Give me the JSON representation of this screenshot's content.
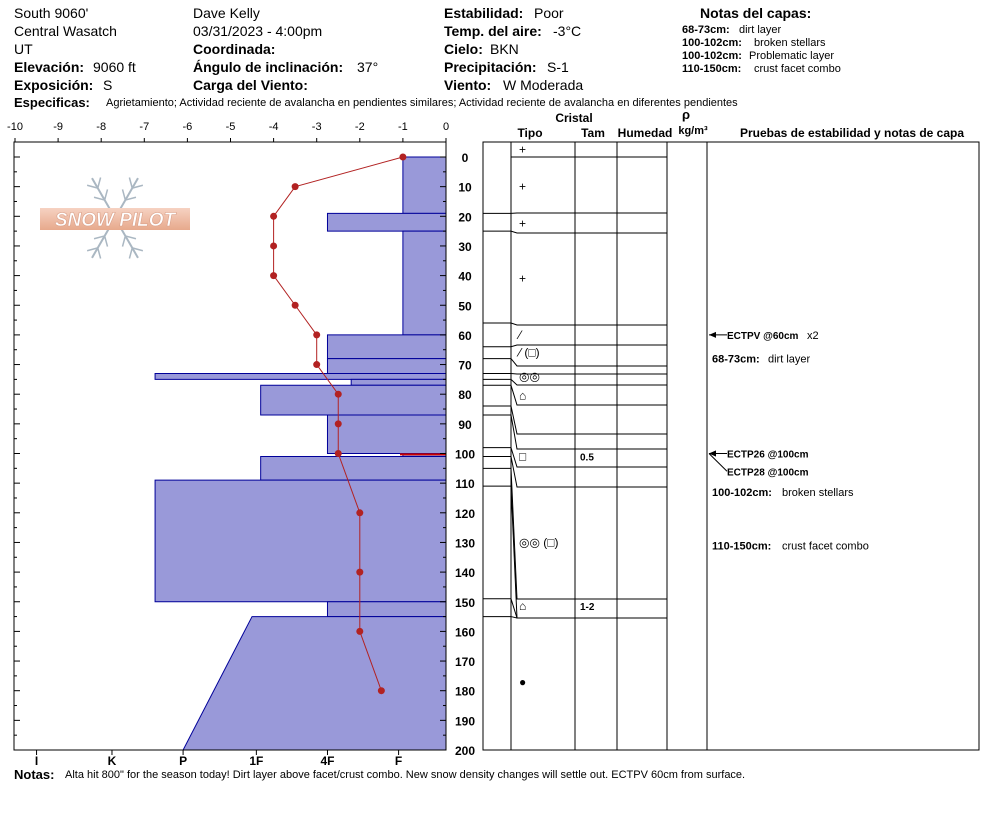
{
  "header": {
    "col1": [
      "South 9060'",
      "Central Wasatch",
      "UT"
    ],
    "elevation_label": "Elevación:",
    "elevation_value": "9060 ft",
    "exposure_label": "Exposición:",
    "exposure_value": "S",
    "observer": "Dave Kelly",
    "datetime": "03/31/2023 - 4:00pm",
    "coord_label": "Coordinada:",
    "slope_label": "Ángulo de inclinación:",
    "slope_value": "37°",
    "wind_load_label": "Carga del Viento:",
    "stability_label": "Estabilidad:",
    "stability_value": "Poor",
    "air_temp_label": "Temp. del aire:",
    "air_temp_value": "-3°C",
    "sky_label": "Cielo:",
    "sky_value": "BKN",
    "precip_label": "Precipitación:",
    "precip_value": "S-1",
    "wind_label": "Viento:",
    "wind_value": "W Moderada",
    "layer_notes_title": "Notas del capas:",
    "layer_notes": [
      {
        "range": "68-73cm:",
        "text": "dirt layer"
      },
      {
        "range": "100-102cm:",
        "text": "broken stellars"
      },
      {
        "range": "100-102cm:",
        "text": "Problematic layer"
      },
      {
        "range": "110-150cm:",
        "text": "crust facet combo"
      }
    ],
    "specifics_label": "Especificas:",
    "specifics_text": "Agrietamiento;  Actividad reciente de avalancha en pendientes similares; Actividad reciente de avalancha en diferentes pendientes"
  },
  "footer": {
    "notes_label": "Notas:",
    "notes_text": "Alta hit 800\" for the season today! Dirt layer above facet/crust combo.  New snow density changes will settle out. ECTPV 60cm from surface."
  },
  "logo_text": "SNOW PILOT",
  "table_headers": {
    "crystal": "Cristal",
    "type": "Tipo",
    "size": "Tam",
    "moisture": "Humedad",
    "rho": "ρ",
    "density_unit": "kg/m³",
    "tests": "Pruebas de estabilidad y notas de capa"
  },
  "colors": {
    "hardness_fill": "#9999d9",
    "hardness_stroke": "#000099",
    "temp_line": "#b22222"
  },
  "chart_data": {
    "type": "line",
    "y_range": [
      0,
      200
    ],
    "y_ticks": [
      "0",
      "10",
      "20",
      "30",
      "40",
      "50",
      "60",
      "70",
      "80",
      "90",
      "100",
      "110",
      "120",
      "130",
      "140",
      "150",
      "160",
      "170",
      "180",
      "190",
      "200"
    ],
    "x_range_temp": [
      -10,
      0
    ],
    "temp_ticks": [
      "-10",
      "-9",
      "-8",
      "-7",
      "-6",
      "-5",
      "-4",
      "-3",
      "-2",
      "-1",
      "0"
    ],
    "hardness_ticks": [
      "I",
      "K",
      "P",
      "1F",
      "4F",
      "F"
    ],
    "temperature_profile": [
      {
        "depth": 0,
        "temp": -1.0
      },
      {
        "depth": 10,
        "temp": -3.5
      },
      {
        "depth": 20,
        "temp": -4.0
      },
      {
        "depth": 30,
        "temp": -4.0
      },
      {
        "depth": 40,
        "temp": -4.0
      },
      {
        "depth": 50,
        "temp": -3.5
      },
      {
        "depth": 60,
        "temp": -3.0
      },
      {
        "depth": 70,
        "temp": -3.0
      },
      {
        "depth": 80,
        "temp": -2.5
      },
      {
        "depth": 90,
        "temp": -2.5
      },
      {
        "depth": 100,
        "temp": -2.5
      },
      {
        "depth": 120,
        "temp": -2.0
      },
      {
        "depth": 140,
        "temp": -2.0
      },
      {
        "depth": 160,
        "temp": -2.0
      },
      {
        "depth": 180,
        "temp": -1.5
      }
    ],
    "hardness_layers": [
      {
        "top": 0,
        "bottom": 19,
        "hardness": 1.0
      },
      {
        "top": 19,
        "bottom": 25,
        "hardness": 2.75
      },
      {
        "top": 25,
        "bottom": 60,
        "hardness": 1.0
      },
      {
        "top": 60,
        "bottom": 68,
        "hardness": 2.75
      },
      {
        "top": 68,
        "bottom": 73,
        "hardness": 2.75
      },
      {
        "top": 73,
        "bottom": 75,
        "hardness": 6.75
      },
      {
        "top": 75,
        "bottom": 77,
        "hardness": 2.2
      },
      {
        "top": 77,
        "bottom": 87,
        "hardness": 4.3
      },
      {
        "top": 87,
        "bottom": 100,
        "hardness": 2.75
      },
      {
        "top": 100,
        "bottom": 101,
        "hardness": 1.0
      },
      {
        "top": 101,
        "bottom": 109,
        "hardness": 4.3
      },
      {
        "top": 109,
        "bottom": 150,
        "hardness": 6.75
      },
      {
        "top": 150,
        "bottom": 155,
        "hardness": 2.75
      },
      {
        "top": 155,
        "bottom": 200,
        "hardness_top": 4.5,
        "hardness_bottom": 6.1
      }
    ],
    "layer_boundaries": [
      19,
      25,
      56,
      64,
      68,
      73,
      75,
      77,
      84,
      87,
      98,
      101,
      105,
      111,
      149,
      155
    ],
    "grain_rows": [
      {
        "depth": -2.5,
        "symbol": "+",
        "size": ""
      },
      {
        "depth": 10,
        "symbol": "+",
        "size": ""
      },
      {
        "depth": 22.5,
        "symbol": "+",
        "size": ""
      },
      {
        "depth": 41,
        "symbol": "+",
        "size": ""
      },
      {
        "depth": 60,
        "symbol": "⁄",
        "size": ""
      },
      {
        "depth": 66,
        "symbol": "⁄ (□)",
        "size": ""
      },
      {
        "depth": 74,
        "symbol": "◎◎",
        "size": ""
      },
      {
        "depth": 80.5,
        "symbol": "⌂",
        "size": ""
      },
      {
        "depth": 101,
        "symbol": "□",
        "size": "0.5"
      },
      {
        "depth": 130,
        "symbol": "◎◎ (□)",
        "size": ""
      },
      {
        "depth": 151.5,
        "symbol": "⌂",
        "size": "1-2"
      },
      {
        "depth": 177,
        "symbol": "●",
        "size": ""
      }
    ],
    "stability_tests": [
      {
        "depth": 60,
        "label": "ECTPV @60cm",
        "extra": "x2"
      },
      {
        "depth": 100,
        "label": "ECTP26 @100cm",
        "extra": ""
      },
      {
        "depth": 106,
        "label": "ECTP28 @100cm",
        "extra": ""
      }
    ],
    "layer_comments": [
      {
        "depth": 68,
        "range": "68-73cm:",
        "text": "dirt layer"
      },
      {
        "depth": 113,
        "range": "100-102cm:",
        "text": "broken stellars"
      },
      {
        "depth": 131,
        "range": "110-150cm:",
        "text": "crust facet combo"
      }
    ]
  }
}
